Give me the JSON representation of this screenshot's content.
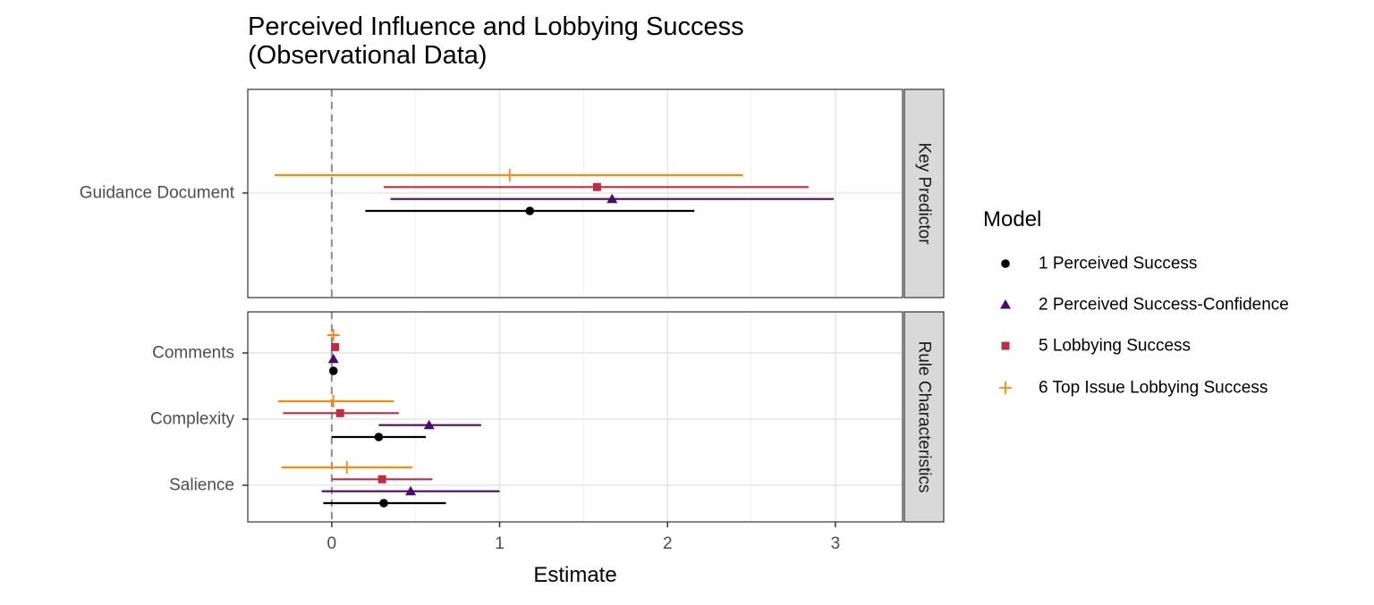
{
  "chart_data": {
    "type": "forest",
    "title": "Perceived Influence and Lobbying Success\n(Observational Data)",
    "xlabel": "Estimate",
    "ylabel": "",
    "xlim": [
      -0.5,
      3.4
    ],
    "x_ticks": [
      0,
      1,
      2,
      3
    ],
    "reference_line_x": 0,
    "grid": true,
    "legend": {
      "title": "Model",
      "position": "right",
      "entries": [
        "1 Perceived Success",
        "2 Perceived Success-Confidence",
        "5 Lobbying Success",
        "6 Top Issue Lobbying Success"
      ]
    },
    "series": [
      {
        "name": "1 Perceived Success",
        "color": "#000000",
        "shape": "circle"
      },
      {
        "name": "2 Perceived Success-Confidence",
        "color": "#4d0a66",
        "shape": "triangle"
      },
      {
        "name": "5 Lobbying Success",
        "color": "#bd2e43",
        "shape": "square"
      },
      {
        "name": "6 Top Issue Lobbying Success",
        "color": "#f68b0e",
        "shape": "plus"
      }
    ],
    "panels": [
      {
        "strip": "Key Predictor",
        "terms": [
          "Guidance Document"
        ],
        "estimates": [
          {
            "term": "Guidance Document",
            "series": "1 Perceived Success",
            "estimate": 1.18,
            "low": 0.2,
            "high": 2.16
          },
          {
            "term": "Guidance Document",
            "series": "2 Perceived Success-Confidence",
            "estimate": 1.67,
            "low": 0.35,
            "high": 2.99
          },
          {
            "term": "Guidance Document",
            "series": "5 Lobbying Success",
            "estimate": 1.58,
            "low": 0.31,
            "high": 2.84
          },
          {
            "term": "Guidance Document",
            "series": "6 Top Issue Lobbying Success",
            "estimate": 1.06,
            "low": -0.34,
            "high": 2.45
          }
        ]
      },
      {
        "strip": "Rule Characteristics",
        "terms": [
          "Comments",
          "Complexity",
          "Salience"
        ],
        "estimates": [
          {
            "term": "Comments",
            "series": "1 Perceived Success",
            "estimate": 0.01,
            "low": 0.0,
            "high": 0.02
          },
          {
            "term": "Comments",
            "series": "2 Perceived Success-Confidence",
            "estimate": 0.01,
            "low": 0.0,
            "high": 0.02
          },
          {
            "term": "Comments",
            "series": "5 Lobbying Success",
            "estimate": 0.02,
            "low": 0.0,
            "high": 0.03
          },
          {
            "term": "Comments",
            "series": "6 Top Issue Lobbying Success",
            "estimate": 0.01,
            "low": -0.02,
            "high": 0.04
          },
          {
            "term": "Complexity",
            "series": "1 Perceived Success",
            "estimate": 0.28,
            "low": 0.0,
            "high": 0.56
          },
          {
            "term": "Complexity",
            "series": "2 Perceived Success-Confidence",
            "estimate": 0.58,
            "low": 0.28,
            "high": 0.89
          },
          {
            "term": "Complexity",
            "series": "5 Lobbying Success",
            "estimate": 0.05,
            "low": -0.29,
            "high": 0.4
          },
          {
            "term": "Complexity",
            "series": "6 Top Issue Lobbying Success",
            "estimate": 0.01,
            "low": -0.32,
            "high": 0.37
          },
          {
            "term": "Salience",
            "series": "1 Perceived Success",
            "estimate": 0.31,
            "low": -0.05,
            "high": 0.68
          },
          {
            "term": "Salience",
            "series": "2 Perceived Success-Confidence",
            "estimate": 0.47,
            "low": -0.06,
            "high": 1.0
          },
          {
            "term": "Salience",
            "series": "5 Lobbying Success",
            "estimate": 0.3,
            "low": 0.0,
            "high": 0.6
          },
          {
            "term": "Salience",
            "series": "6 Top Issue Lobbying Success",
            "estimate": 0.09,
            "low": -0.3,
            "high": 0.48
          }
        ]
      }
    ]
  }
}
